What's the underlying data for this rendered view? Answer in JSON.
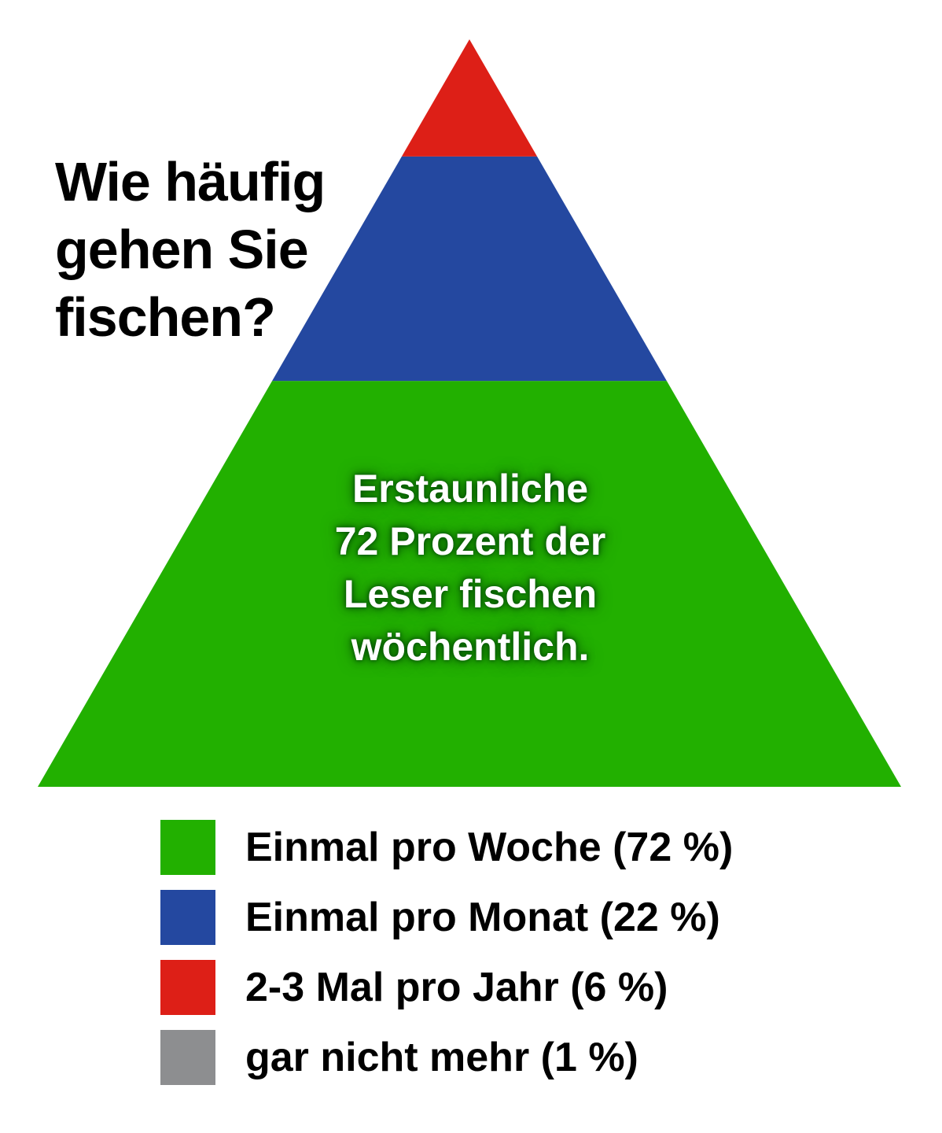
{
  "chart_data": {
    "type": "pyramid",
    "title": [
      "Wie häufig",
      "gehen Sie",
      "fischen?"
    ],
    "annotation": [
      "Erstaunliche",
      "72 Prozent der",
      "Leser fischen",
      "wöchentlich."
    ],
    "legend_position": "bottom",
    "segments": [
      {
        "label": "Einmal pro Woche (72 %)",
        "value": 72,
        "color": "#22b000"
      },
      {
        "label": "Einmal pro Monat (22 %)",
        "value": 22,
        "color": "#2448a0"
      },
      {
        "label": "2-3 Mal pro Jahr (6 %)",
        "value": 6,
        "color": "#dd1f17"
      },
      {
        "label": "gar nicht mehr (1 %)",
        "value": 1,
        "color": "#8d8e90"
      }
    ]
  }
}
